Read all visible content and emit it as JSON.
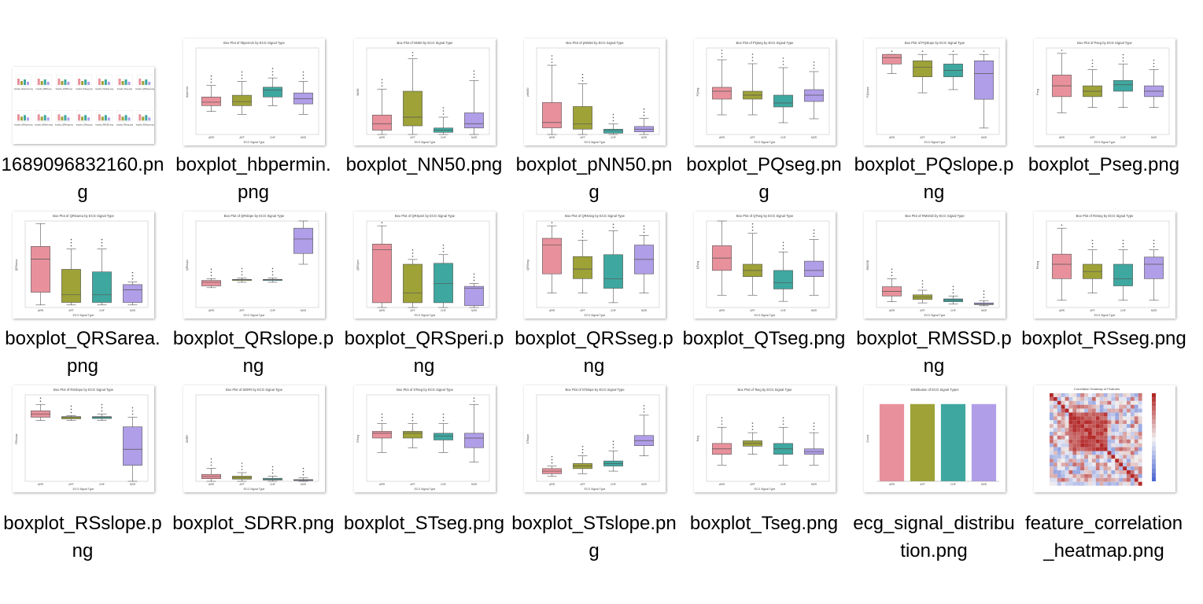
{
  "colors": {
    "ARR": "#e8919c",
    "AFF": "#9ea237",
    "CHF": "#3ea8a0",
    "NSR": "#b09ee8",
    "box_line": "#555555",
    "text": "#000000"
  },
  "categories": [
    "ARR",
    "AFF",
    "CHF",
    "NSR"
  ],
  "axis_xlabel": "ECG Signal Type",
  "files": [
    {
      "name": "1689096832160.png",
      "kind": "mosaic",
      "mosaic_labels": [
        "boxplot_hbpermin.png",
        "boxplot_NN50.png",
        "boxplot_pNN50.png",
        "boxplot_PQseg.png",
        "boxplot_PQslope.png",
        "boxplot_Pseg.png",
        "boxplot_QRSarea.png",
        "boxplot_QRslope.png",
        "boxplot_QRSperi.png",
        "boxplot_QRSseg.png",
        "boxplot_QTseg.png",
        "boxplot_RMSSD.png",
        "boxplot_RSseg.png",
        "boxplot_RSslope.png",
        "boxplot_SDRR.png",
        "boxplot_STseg.png",
        "boxplot_STslope.png",
        "boxplot_Tseg.png",
        "ecg_signal_distribution.png",
        "feature_correlation_heatmap.png"
      ]
    },
    {
      "name": "boxplot_hbpermin.png",
      "kind": "box",
      "title": "Box Plot of hbpermin by ECG Signal Type",
      "ylabel": "hbpermin",
      "boxes": [
        [
          60,
          70,
          76,
          85,
          105
        ],
        [
          55,
          70,
          77,
          88,
          112
        ],
        [
          70,
          85,
          97,
          102,
          118
        ],
        [
          55,
          73,
          82,
          92,
          112
        ]
      ],
      "ylim": [
        20,
        170
      ]
    },
    {
      "name": "boxplot_NN50.png",
      "kind": "box",
      "title": "Box Plot of NN50 by ECG Signal Type",
      "ylabel": "NN50",
      "boxes": [
        [
          0,
          2,
          5,
          9,
          21
        ],
        [
          0,
          4,
          8,
          20,
          35
        ],
        [
          0,
          1,
          2,
          3,
          8
        ],
        [
          0,
          3,
          5,
          10,
          25
        ]
      ],
      "ylim": [
        0,
        40
      ]
    },
    {
      "name": "boxplot_pNN50.png",
      "kind": "box",
      "title": "Box Plot of pNN50 by ECG Signal Type",
      "ylabel": "pNN50",
      "boxes": [
        [
          0,
          5,
          9,
          24,
          52
        ],
        [
          0,
          4,
          8,
          21,
          38
        ],
        [
          0,
          1,
          3,
          4,
          8
        ],
        [
          0,
          2,
          4,
          6,
          12
        ]
      ],
      "ylim": [
        0,
        65
      ]
    },
    {
      "name": "boxplot_PQseg.png",
      "kind": "box",
      "title": "Box Plot of PQseg by ECG Signal Type",
      "ylabel": "PQseg",
      "boxes": [
        [
          0.065,
          0.085,
          0.095,
          0.1,
          0.135
        ],
        [
          0.065,
          0.085,
          0.09,
          0.095,
          0.13
        ],
        [
          0.055,
          0.075,
          0.08,
          0.09,
          0.125
        ],
        [
          0.06,
          0.082,
          0.09,
          0.097,
          0.12
        ]
      ],
      "ylim": [
        0.04,
        0.15
      ]
    },
    {
      "name": "boxplot_PQslope.png",
      "kind": "box",
      "title": "Box Plot of PQslope by ECG Signal Type",
      "ylabel": "PQslope",
      "boxes": [
        [
          -0.06,
          -0.03,
          -0.01,
          0.0,
          0.0
        ],
        [
          -0.12,
          -0.07,
          -0.04,
          -0.02,
          0.0
        ],
        [
          -0.11,
          -0.07,
          -0.05,
          -0.03,
          0.0
        ],
        [
          -0.23,
          -0.14,
          -0.06,
          -0.02,
          0.0
        ]
      ],
      "ylim": [
        -0.25,
        0.02
      ]
    },
    {
      "name": "boxplot_Pseg.png",
      "kind": "box",
      "title": "Box Plot of Pseg by ECG Signal Type",
      "ylabel": "Pseg",
      "boxes": [
        [
          0.04,
          0.055,
          0.065,
          0.075,
          0.095
        ],
        [
          0.045,
          0.055,
          0.06,
          0.065,
          0.08
        ],
        [
          0.045,
          0.06,
          0.066,
          0.07,
          0.085
        ],
        [
          0.045,
          0.055,
          0.06,
          0.065,
          0.08
        ]
      ],
      "ylim": [
        0.02,
        0.1
      ]
    },
    {
      "name": "boxplot_QRSarea.png",
      "kind": "box",
      "title": "Box Plot of QRSarea by ECG Signal Type",
      "ylabel": "QRSarea",
      "boxes": [
        [
          0,
          5,
          18,
          23,
          32
        ],
        [
          0,
          1,
          4,
          14,
          22
        ],
        [
          0,
          1,
          4,
          13,
          22
        ],
        [
          0,
          1,
          6,
          8,
          9
        ]
      ],
      "ylim": [
        -1,
        33
      ]
    },
    {
      "name": "boxplot_QRslope.png",
      "kind": "box",
      "title": "Box Plot of QRslope by ECG Signal Type",
      "ylabel": "QRslope",
      "boxes": [
        [
          0.085,
          0.09,
          0.1,
          0.105,
          0.11
        ],
        [
          0.1,
          0.105,
          0.107,
          0.108,
          0.112
        ],
        [
          0.1,
          0.105,
          0.107,
          0.108,
          0.112
        ],
        [
          0.15,
          0.18,
          0.22,
          0.25,
          0.27
        ]
      ],
      "ylim": [
        0.03,
        0.27
      ]
    },
    {
      "name": "boxplot_QRSperi.png",
      "kind": "box",
      "title": "Box Plot of QRSperi by ECG Signal Type",
      "ylabel": "QRSperi",
      "boxes": [
        [
          0,
          5,
          60,
          66,
          85
        ],
        [
          0,
          5,
          15,
          45,
          50
        ],
        [
          0,
          5,
          25,
          46,
          55
        ],
        [
          0,
          2,
          20,
          22,
          25
        ]
      ],
      "ylim": [
        0,
        90
      ]
    },
    {
      "name": "boxplot_QRSseg.png",
      "kind": "box",
      "title": "Box Plot of QRSseg by ECG Signal Type",
      "ylabel": "QRSseg",
      "boxes": [
        [
          0.05,
          0.07,
          0.1,
          0.107,
          0.12
        ],
        [
          0.05,
          0.065,
          0.075,
          0.088,
          0.105
        ],
        [
          0.04,
          0.055,
          0.065,
          0.09,
          0.115
        ],
        [
          0.05,
          0.07,
          0.085,
          0.1,
          0.11
        ]
      ],
      "ylim": [
        0.035,
        0.125
      ]
    },
    {
      "name": "boxplot_QTseg.png",
      "kind": "box",
      "title": "Box Plot of QTseg by ECG Signal Type",
      "ylabel": "QTseg",
      "boxes": [
        [
          0.1,
          0.14,
          0.16,
          0.18,
          0.22
        ],
        [
          0.1,
          0.13,
          0.14,
          0.15,
          0.2
        ],
        [
          0.09,
          0.11,
          0.12,
          0.14,
          0.17
        ],
        [
          0.1,
          0.13,
          0.14,
          0.155,
          0.19
        ]
      ],
      "ylim": [
        0.08,
        0.22
      ]
    },
    {
      "name": "boxplot_RMSSD.png",
      "kind": "box",
      "title": "Box Plot of RMSSD by ECG Signal Type",
      "ylabel": "RMSSD",
      "boxes": [
        [
          100,
          200,
          280,
          360,
          500
        ],
        [
          80,
          140,
          180,
          220,
          300
        ],
        [
          60,
          100,
          130,
          150,
          200
        ],
        [
          30,
          50,
          60,
          80,
          120
        ]
      ],
      "ylim": [
        0,
        1500
      ]
    },
    {
      "name": "boxplot_RSseg.png",
      "kind": "box",
      "title": "Box Plot of RSseg by ECG Signal Type",
      "ylabel": "RSseg",
      "boxes": [
        [
          0.03,
          0.045,
          0.055,
          0.062,
          0.08
        ],
        [
          0.035,
          0.045,
          0.05,
          0.055,
          0.065
        ],
        [
          0.03,
          0.04,
          0.045,
          0.055,
          0.065
        ],
        [
          0.03,
          0.045,
          0.055,
          0.06,
          0.065
        ]
      ],
      "ylim": [
        0.025,
        0.085
      ]
    },
    {
      "name": "boxplot_RSslope.png",
      "kind": "box",
      "title": "Box Plot of RSslope by ECG Signal Type",
      "ylabel": "RSslope",
      "boxes": [
        [
          -0.11,
          -0.1,
          -0.09,
          -0.08,
          -0.06
        ],
        [
          -0.11,
          -0.105,
          -0.1,
          -0.098,
          -0.095
        ],
        [
          -0.11,
          -0.104,
          -0.1,
          -0.098,
          -0.09
        ],
        [
          -0.3,
          -0.25,
          -0.2,
          -0.13,
          -0.1
        ]
      ],
      "ylim": [
        -0.3,
        -0.03
      ]
    },
    {
      "name": "boxplot_SDRR.png",
      "kind": "box",
      "title": "Box Plot of SDRR by ECG Signal Type",
      "ylabel": "SDRR",
      "boxes": [
        [
          0,
          30,
          55,
          80,
          150
        ],
        [
          0,
          25,
          40,
          60,
          100
        ],
        [
          0,
          15,
          25,
          35,
          60
        ],
        [
          0,
          8,
          15,
          20,
          40
        ]
      ],
      "ylim": [
        0,
        1000
      ]
    },
    {
      "name": "boxplot_STseg.png",
      "kind": "box",
      "title": "Box Plot of STseg by ECG Signal Type",
      "ylabel": "STseg",
      "boxes": [
        [
          0.08,
          0.095,
          0.1,
          0.102,
          0.11
        ],
        [
          0.085,
          0.095,
          0.1,
          0.102,
          0.11
        ],
        [
          0.08,
          0.093,
          0.097,
          0.1,
          0.11
        ],
        [
          0.07,
          0.085,
          0.095,
          0.1,
          0.13
        ]
      ],
      "ylim": [
        0.05,
        0.14
      ]
    },
    {
      "name": "boxplot_STslope.png",
      "kind": "box",
      "title": "Box Plot of STslope by ECG Signal Type",
      "ylabel": "STslope",
      "boxes": [
        [
          0.01,
          0.015,
          0.02,
          0.025,
          0.03
        ],
        [
          0.015,
          0.025,
          0.03,
          0.035,
          0.05
        ],
        [
          0.02,
          0.03,
          0.035,
          0.04,
          0.06
        ],
        [
          0.05,
          0.07,
          0.08,
          0.09,
          0.13
        ]
      ],
      "ylim": [
        0.0,
        0.17
      ]
    },
    {
      "name": "boxplot_Tseg.png",
      "kind": "box",
      "title": "Box Plot of Tseg by ECG Signal Type",
      "ylabel": "Tseg",
      "boxes": [
        [
          0.07,
          0.09,
          0.1,
          0.11,
          0.14
        ],
        [
          0.09,
          0.105,
          0.11,
          0.115,
          0.13
        ],
        [
          0.07,
          0.09,
          0.1,
          0.11,
          0.14
        ],
        [
          0.07,
          0.09,
          0.095,
          0.1,
          0.13
        ]
      ],
      "ylim": [
        0.04,
        0.2
      ]
    },
    {
      "name": "ecg_signal_distribution.png",
      "kind": "bar",
      "title": "Distribution of ECG Signal Types",
      "ylabel": "Count",
      "values": [
        250,
        250,
        250,
        250
      ],
      "ylim": [
        0,
        280
      ]
    },
    {
      "name": "feature_correlation_heatmap.png",
      "kind": "heatmap",
      "title": "Correlation Heatmap of Features"
    }
  ]
}
